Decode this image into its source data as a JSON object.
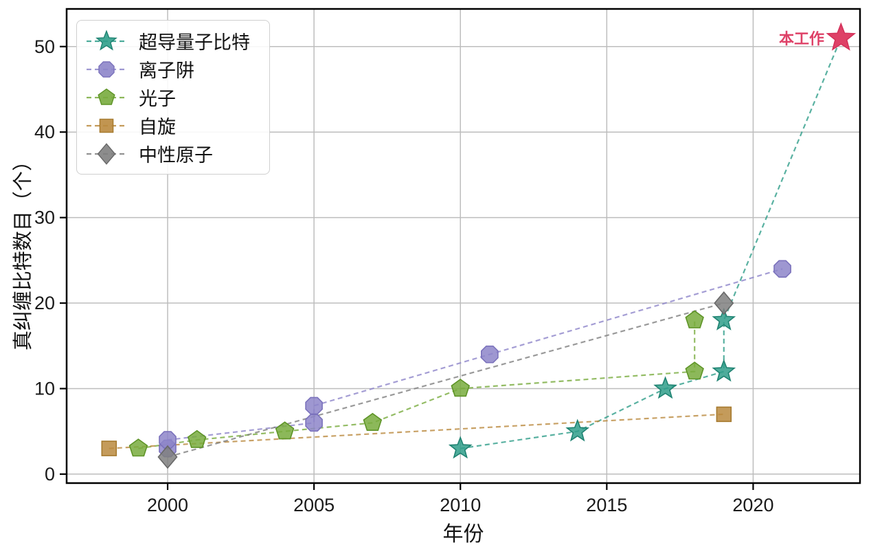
{
  "chart_data": {
    "type": "line",
    "title": "",
    "xlabel": "年份",
    "ylabel": "真纠缠比特数目（个）",
    "xlim": [
      1996.55,
      2023.65
    ],
    "ylim": [
      -1.05,
      54.4
    ],
    "xticks": [
      2000,
      2005,
      2010,
      2015,
      2020
    ],
    "yticks": [
      0,
      10,
      20,
      30,
      40,
      50
    ],
    "grid": true,
    "grid_color": "#bdbdbd",
    "legend_position": "upper-left",
    "line_style": "dashed",
    "series": [
      {
        "key": "superconducting-qubits",
        "name": "超导量子比特",
        "marker": "star",
        "color": "#2f9e8a",
        "edge": "#1f8372",
        "x": [
          2010,
          2014,
          2017,
          2019,
          2019,
          2023
        ],
        "y": [
          3,
          5,
          10,
          12,
          18,
          51
        ]
      },
      {
        "key": "ion-trap",
        "name": "离子阱",
        "marker": "octagon",
        "color": "#8d85c9",
        "edge": "#7b72bc",
        "x": [
          2000,
          2000,
          2005,
          2005,
          2011,
          2021
        ],
        "y": [
          3,
          4,
          6,
          8,
          14,
          24
        ]
      },
      {
        "key": "photon",
        "name": "光子",
        "marker": "pentagon",
        "color": "#78ab3d",
        "edge": "#5e9427",
        "x": [
          1999,
          2001,
          2004,
          2007,
          2010,
          2018,
          2018
        ],
        "y": [
          3,
          4,
          5,
          6,
          10,
          12,
          18
        ]
      },
      {
        "key": "spin",
        "name": "自旋",
        "marker": "square",
        "color": "#ba8a3e",
        "edge": "#a67a2f",
        "x": [
          1998,
          2019
        ],
        "y": [
          3,
          7
        ]
      },
      {
        "key": "neutral-atom",
        "name": "中性原子",
        "marker": "diamond",
        "color": "#7f7f7f",
        "edge": "#686868",
        "x": [
          2000,
          2019
        ],
        "y": [
          2,
          20
        ]
      }
    ],
    "annotation": {
      "label": "本工作",
      "x": 2023,
      "y": 51,
      "marker": "star",
      "color": "#de4167",
      "edge": "#d42f58"
    }
  }
}
